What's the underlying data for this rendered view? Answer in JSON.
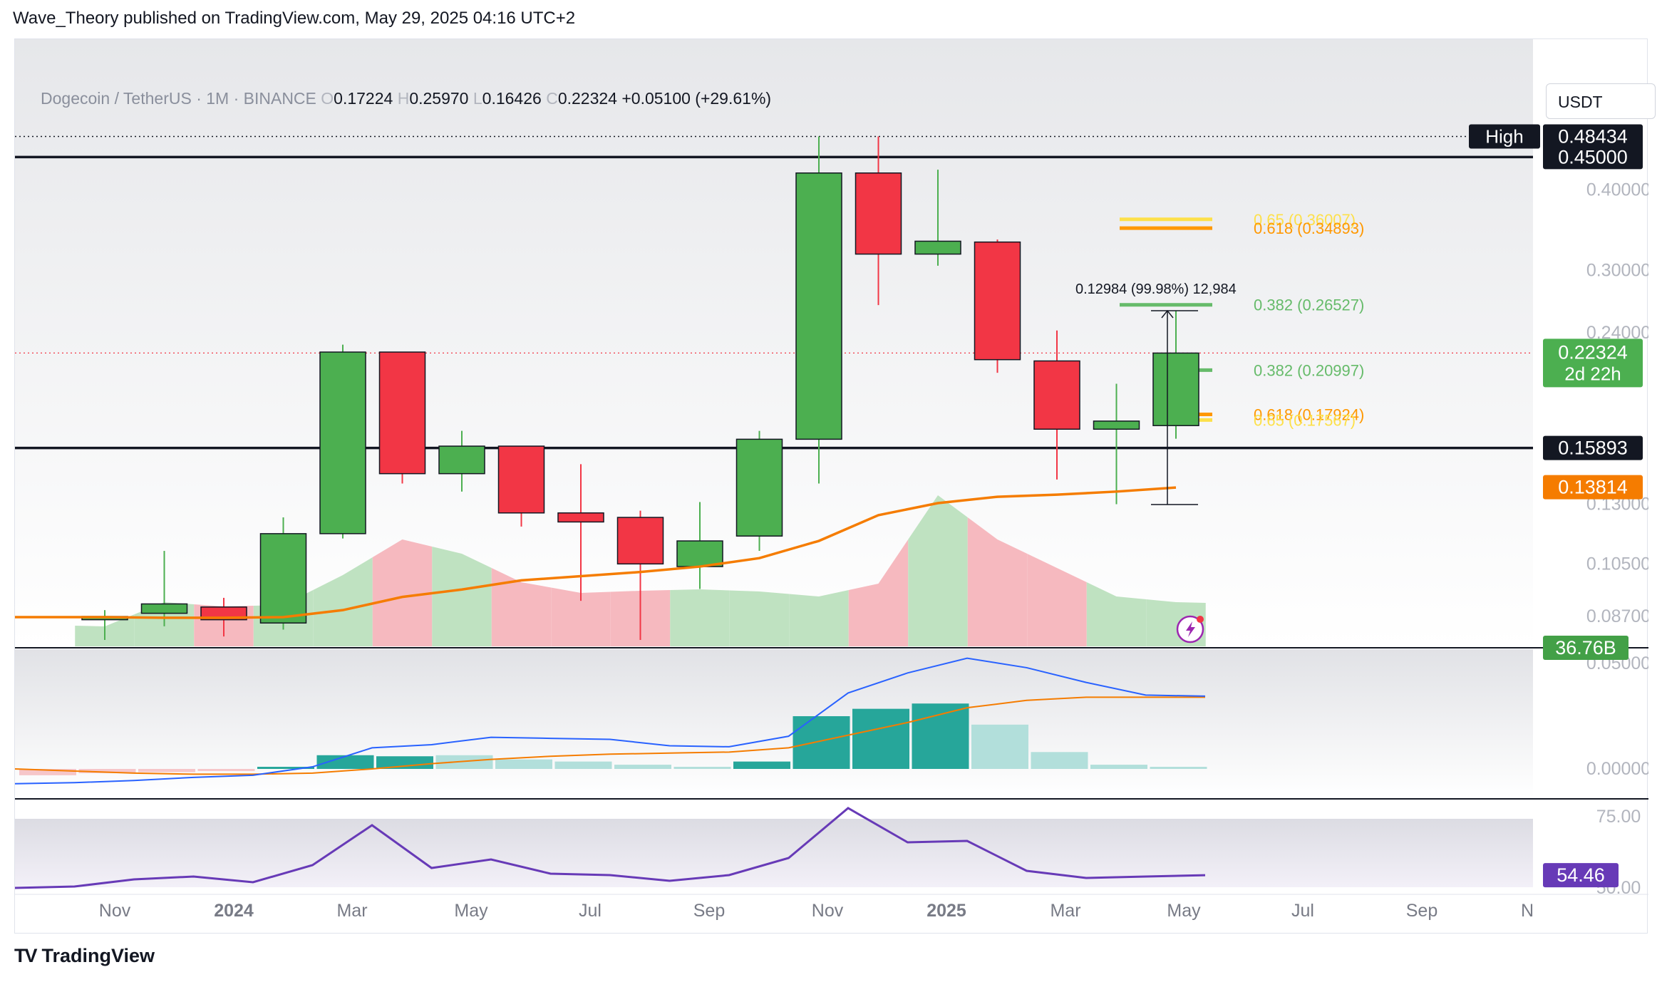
{
  "header": {
    "text": "Wave_Theory published on TradingView.com, May 29, 2025 04:16 UTC+2"
  },
  "legend": {
    "symbol": "Dogecoin / TetherUS · 1M · BINANCE",
    "o_label": "O",
    "o_value": "0.17224",
    "h_label": "H",
    "h_value": "0.25970",
    "l_label": "L",
    "l_value": "0.16426",
    "c_label": "C",
    "c_value": "0.22324",
    "change": "+0.05100 (+29.61%)"
  },
  "currency_button": "USDT",
  "footer": {
    "logo": "TV",
    "brand": "TradingView"
  },
  "colors": {
    "up": "#4caf50",
    "down": "#f23645",
    "sma": "#f57c00",
    "macd": "#2962ff",
    "rsi": "#673ab7",
    "price_tag": "#4caf50",
    "fib_yellow": "#fde04a",
    "fib_orange": "#ff9800",
    "fib_green": "#66bb6a"
  },
  "chart_data": [
    {
      "type": "candlestick",
      "interval": "1M",
      "x_labels": [
        "Nov",
        "2024",
        "Mar",
        "May",
        "Jul",
        "Sep",
        "Nov",
        "2025",
        "Mar",
        "May",
        "Jul",
        "Sep",
        "N"
      ],
      "y_ticks": [
        "0.40000",
        "0.30000",
        "0.24000",
        "0.13000",
        "0.10500",
        "0.08700"
      ],
      "candles": [
        {
          "month": "2023-10",
          "open": 0.086,
          "high": 0.089,
          "low": 0.08,
          "close": 0.087
        },
        {
          "month": "2023-11",
          "open": 0.088,
          "high": 0.11,
          "low": 0.084,
          "close": 0.091
        },
        {
          "month": "2023-12",
          "open": 0.09,
          "high": 0.093,
          "low": 0.081,
          "close": 0.086
        },
        {
          "month": "2024-01",
          "open": 0.085,
          "high": 0.124,
          "low": 0.083,
          "close": 0.117
        },
        {
          "month": "2024-02",
          "open": 0.117,
          "high": 0.23,
          "low": 0.115,
          "close": 0.224
        },
        {
          "month": "2024-03",
          "open": 0.224,
          "high": 0.224,
          "low": 0.14,
          "close": 0.145
        },
        {
          "month": "2024-04",
          "open": 0.145,
          "high": 0.169,
          "low": 0.136,
          "close": 0.16
        },
        {
          "month": "2024-05",
          "open": 0.16,
          "high": 0.16,
          "low": 0.12,
          "close": 0.126
        },
        {
          "month": "2024-06",
          "open": 0.126,
          "high": 0.15,
          "low": 0.092,
          "close": 0.122
        },
        {
          "month": "2024-07",
          "open": 0.124,
          "high": 0.127,
          "low": 0.08,
          "close": 0.105
        },
        {
          "month": "2024-08",
          "open": 0.104,
          "high": 0.131,
          "low": 0.096,
          "close": 0.114
        },
        {
          "month": "2024-09",
          "open": 0.116,
          "high": 0.169,
          "low": 0.11,
          "close": 0.164
        },
        {
          "month": "2024-10",
          "open": 0.164,
          "high": 0.4843,
          "low": 0.14,
          "close": 0.425
        },
        {
          "month": "2024-11",
          "open": 0.425,
          "high": 0.4843,
          "low": 0.265,
          "close": 0.318
        },
        {
          "month": "2024-12",
          "open": 0.318,
          "high": 0.43,
          "low": 0.305,
          "close": 0.333
        },
        {
          "month": "2025-01",
          "open": 0.332,
          "high": 0.335,
          "low": 0.208,
          "close": 0.218
        },
        {
          "month": "2025-02",
          "open": 0.217,
          "high": 0.242,
          "low": 0.142,
          "close": 0.17
        },
        {
          "month": "2025-03",
          "open": 0.17,
          "high": 0.2,
          "low": 0.13,
          "close": 0.175
        },
        {
          "month": "2025-04",
          "open": 0.1722,
          "high": 0.2597,
          "low": 0.1643,
          "close": 0.2232
        }
      ],
      "sma": [
        0.0868,
        0.0866,
        0.0866,
        0.0868,
        0.089,
        0.0933,
        0.0958,
        0.099,
        0.1005,
        0.102,
        0.104,
        0.1072,
        0.114,
        0.125,
        0.1305,
        0.1335,
        0.1345,
        0.136,
        0.138
      ],
      "volume_area": {
        "dir": [
          "up",
          "up",
          "down",
          "up",
          "up",
          "down",
          "up",
          "down",
          "down",
          "down",
          "up",
          "up",
          "up",
          "down",
          "up",
          "down",
          "down",
          "up",
          "up"
        ]
      },
      "horizontal_levels": [
        {
          "label": "High",
          "value": 0.48434,
          "value_label": "0.48434"
        },
        {
          "value": 0.45,
          "value_label": "0.45000"
        },
        {
          "value": 0.15893,
          "value_label": "0.15893"
        }
      ],
      "price_tags": [
        {
          "value_label": "0.22324",
          "sub_label": "2d 22h",
          "value": 0.22324
        },
        {
          "value_label": "0.13814",
          "value": 0.13814
        },
        {
          "value_label": "36.76B"
        }
      ],
      "fib_levels": [
        {
          "label": "0.65 (0.36007)",
          "value": 0.36007,
          "color": "yellow"
        },
        {
          "label": "0.618 (0.34893)",
          "value": 0.34893,
          "color": "orange"
        },
        {
          "label": "0.382 (0.26527)",
          "value": 0.26527,
          "color": "green"
        },
        {
          "label": "0.382 (0.20997)",
          "value": 0.20997,
          "color": "green"
        },
        {
          "label": "0.618 (0.17924)",
          "value": 0.17924,
          "color": "orange"
        },
        {
          "label": "0.65 (0.17567)",
          "value": 0.17567,
          "color": "yellow"
        }
      ],
      "measure": {
        "label": "0.12984 (99.98%) 12,984",
        "from": 0.12984,
        "to": 0.2597
      }
    },
    {
      "type": "macd",
      "y_ticks": [
        "0.05000",
        "0.00000"
      ],
      "histogram": [
        -0.003,
        -0.002,
        -0.0015,
        -0.001,
        0.001,
        0.0065,
        0.006,
        0.0065,
        0.0045,
        0.0035,
        0.002,
        0.001,
        0.0035,
        0.025,
        0.0285,
        0.031,
        0.021,
        0.008,
        0.002,
        0.001
      ],
      "macd_line": [
        -0.007,
        -0.0065,
        -0.0055,
        -0.004,
        -0.003,
        0.001,
        0.01,
        0.0115,
        0.015,
        0.0145,
        0.014,
        0.011,
        0.0105,
        0.0155,
        0.036,
        0.0455,
        0.0525,
        0.048,
        0.041,
        0.035,
        0.0345
      ],
      "signal_line": [
        0.0,
        -0.001,
        -0.002,
        -0.0025,
        -0.0025,
        -0.002,
        0.0,
        0.0025,
        0.0045,
        0.006,
        0.007,
        0.0075,
        0.008,
        0.01,
        0.016,
        0.022,
        0.029,
        0.0325,
        0.034,
        0.034,
        0.034
      ]
    },
    {
      "type": "rsi",
      "y_ticks": [
        "75.00",
        "50.00"
      ],
      "current_label": "54.46",
      "values": [
        50.0,
        50.5,
        53.0,
        54.0,
        52.0,
        58.0,
        72.0,
        57.0,
        60.0,
        55.0,
        54.5,
        52.5,
        54.5,
        60.5,
        78.0,
        66.0,
        66.5,
        56.0,
        53.5,
        54.0,
        54.46
      ]
    }
  ]
}
